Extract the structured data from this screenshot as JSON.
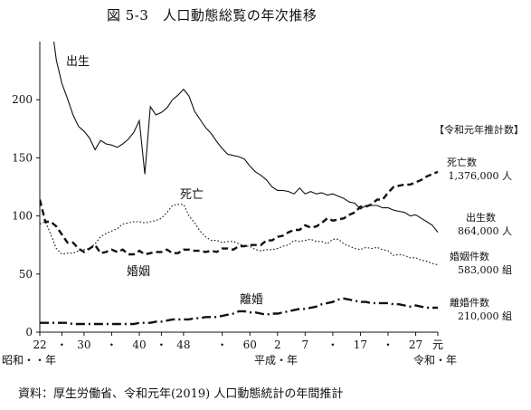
{
  "title": "図 5-3　人口動態総覧の年次推移",
  "source": "資料：厚生労働省、令和元年(2019) 人口動態統計の年間推計",
  "chart_data": {
    "type": "line",
    "ylim": [
      0,
      250
    ],
    "xlim": [
      1947,
      2019
    ],
    "y_ticks": [
      0,
      50,
      100,
      150,
      200
    ],
    "x_ticks": [
      {
        "x": 1947,
        "label": "22"
      },
      {
        "x": 1951,
        "label": "・"
      },
      {
        "x": 1955,
        "label": "30"
      },
      {
        "x": 1960,
        "label": "・"
      },
      {
        "x": 1965,
        "label": "40"
      },
      {
        "x": 1969,
        "label": "・"
      },
      {
        "x": 1973,
        "label": "48"
      },
      {
        "x": 1980,
        "label": "・"
      },
      {
        "x": 1985,
        "label": "60"
      },
      {
        "x": 1990,
        "label": "2"
      },
      {
        "x": 1995,
        "label": "7"
      },
      {
        "x": 2000,
        "label": "・"
      },
      {
        "x": 2005,
        "label": "17"
      },
      {
        "x": 2010,
        "label": "・"
      },
      {
        "x": 2015,
        "label": "27"
      },
      {
        "x": 2019,
        "label": "元"
      }
    ],
    "era_labels": [
      "昭和・・年",
      "平成・年",
      "令和・年"
    ],
    "legend_header": "【令和元年推計数】",
    "series": [
      {
        "name": "出生",
        "end_label": [
          "出生数",
          "864,000 人"
        ],
        "color": "#111111",
        "dash": "",
        "x": [
          1947,
          1948,
          1949,
          1950,
          1951,
          1952,
          1953,
          1954,
          1955,
          1956,
          1957,
          1958,
          1959,
          1960,
          1961,
          1962,
          1963,
          1964,
          1965,
          1966,
          1967,
          1968,
          1969,
          1970,
          1971,
          1972,
          1973,
          1974,
          1975,
          1976,
          1977,
          1978,
          1979,
          1980,
          1981,
          1982,
          1983,
          1984,
          1985,
          1986,
          1987,
          1988,
          1989,
          1990,
          1991,
          1992,
          1993,
          1994,
          1995,
          1996,
          1997,
          1998,
          1999,
          2000,
          2001,
          2002,
          2003,
          2004,
          2005,
          2006,
          2007,
          2008,
          2009,
          2010,
          2011,
          2012,
          2013,
          2014,
          2015,
          2016,
          2017,
          2018,
          2019
        ],
        "values": [
          268,
          268,
          270,
          234,
          214,
          201,
          187,
          177,
          173,
          167,
          157,
          165,
          162,
          161,
          159,
          162,
          166,
          172,
          182,
          136,
          194,
          187,
          189,
          193,
          200,
          204,
          209,
          203,
          190,
          183,
          176,
          171,
          164,
          158,
          153,
          152,
          151,
          149,
          143,
          138,
          135,
          131,
          125,
          122,
          122,
          121,
          119,
          124,
          119,
          121,
          119,
          120,
          118,
          119,
          117,
          115,
          112,
          111,
          106,
          109,
          109,
          109,
          107,
          107,
          105,
          104,
          103,
          100,
          101,
          98,
          95,
          92,
          86
        ]
      },
      {
        "name": "死亡",
        "end_label": [
          "死亡数",
          "1,376,000 人"
        ],
        "color": "#111111",
        "dash": "7,4",
        "x": [
          1947,
          1948,
          1949,
          1950,
          1951,
          1952,
          1953,
          1954,
          1955,
          1956,
          1957,
          1958,
          1959,
          1960,
          1961,
          1962,
          1963,
          1964,
          1965,
          1966,
          1967,
          1968,
          1969,
          1970,
          1971,
          1972,
          1973,
          1974,
          1975,
          1976,
          1977,
          1978,
          1979,
          1980,
          1981,
          1982,
          1983,
          1984,
          1985,
          1986,
          1987,
          1988,
          1989,
          1990,
          1991,
          1992,
          1993,
          1994,
          1995,
          1996,
          1997,
          1998,
          1999,
          2000,
          2001,
          2002,
          2003,
          2004,
          2005,
          2006,
          2007,
          2008,
          2009,
          2010,
          2011,
          2012,
          2013,
          2014,
          2015,
          2016,
          2017,
          2018,
          2019
        ],
        "values": [
          114,
          95,
          95,
          91,
          84,
          77,
          77,
          72,
          69,
          72,
          75,
          68,
          69,
          71,
          69,
          71,
          67,
          67,
          70,
          67,
          68,
          69,
          69,
          71,
          68,
          68,
          71,
          71,
          70,
          70,
          69,
          70,
          69,
          72,
          72,
          71,
          74,
          74,
          75,
          75,
          75,
          79,
          79,
          82,
          83,
          86,
          88,
          88,
          92,
          90,
          91,
          94,
          98,
          96,
          97,
          98,
          101,
          103,
          108,
          108,
          110,
          114,
          114,
          120,
          125,
          126,
          127,
          127,
          129,
          131,
          134,
          136,
          138
        ]
      },
      {
        "name": "婚姻",
        "end_label": [
          "婚姻件数",
          "583,000 組"
        ],
        "color": "#111111",
        "dash": "1.6,2.2",
        "x": [
          1947,
          1948,
          1949,
          1950,
          1951,
          1952,
          1953,
          1954,
          1955,
          1956,
          1957,
          1958,
          1959,
          1960,
          1961,
          1962,
          1963,
          1964,
          1965,
          1966,
          1967,
          1968,
          1969,
          1970,
          1971,
          1972,
          1973,
          1974,
          1975,
          1976,
          1977,
          1978,
          1979,
          1980,
          1981,
          1982,
          1983,
          1984,
          1985,
          1986,
          1987,
          1988,
          1989,
          1990,
          1991,
          1992,
          1993,
          1994,
          1995,
          1996,
          1997,
          1998,
          1999,
          2000,
          2001,
          2002,
          2003,
          2004,
          2005,
          2006,
          2007,
          2008,
          2009,
          2010,
          2011,
          2012,
          2013,
          2014,
          2015,
          2016,
          2017,
          2018,
          2019
        ],
        "values": [
          93,
          95,
          84,
          72,
          67,
          68,
          68,
          70,
          71,
          72,
          76,
          82,
          85,
          87,
          89,
          93,
          94,
          95,
          95,
          94,
          95,
          96,
          98,
          103,
          109,
          110,
          110,
          100,
          94,
          87,
          82,
          79,
          79,
          77,
          78,
          78,
          76,
          74,
          74,
          71,
          70,
          71,
          71,
          72,
          74,
          75,
          79,
          78,
          79,
          80,
          78,
          78,
          76,
          80,
          80,
          76,
          74,
          72,
          71,
          73,
          72,
          73,
          71,
          70,
          66,
          67,
          66,
          64,
          64,
          62,
          61,
          59,
          58
        ]
      },
      {
        "name": "離婚",
        "end_label": [
          "離婚件数",
          "210,000 組"
        ],
        "color": "#111111",
        "dash": "10,4,2,4",
        "x": [
          1947,
          1948,
          1949,
          1950,
          1951,
          1952,
          1953,
          1954,
          1955,
          1956,
          1957,
          1958,
          1959,
          1960,
          1961,
          1962,
          1963,
          1964,
          1965,
          1966,
          1967,
          1968,
          1969,
          1970,
          1971,
          1972,
          1973,
          1974,
          1975,
          1976,
          1977,
          1978,
          1979,
          1980,
          1981,
          1982,
          1983,
          1984,
          1985,
          1986,
          1987,
          1988,
          1989,
          1990,
          1991,
          1992,
          1993,
          1994,
          1995,
          1996,
          1997,
          1998,
          1999,
          2000,
          2001,
          2002,
          2003,
          2004,
          2005,
          2006,
          2007,
          2008,
          2009,
          2010,
          2011,
          2012,
          2013,
          2014,
          2015,
          2016,
          2017,
          2018,
          2019
        ],
        "values": [
          8,
          8,
          8,
          8,
          8,
          8,
          7,
          7,
          7,
          7,
          7,
          7,
          7,
          7,
          7,
          7,
          7,
          7,
          8,
          8,
          8,
          9,
          9,
          10,
          11,
          11,
          11,
          11,
          12,
          12,
          13,
          13,
          13,
          14,
          15,
          16,
          18,
          18,
          17,
          17,
          16,
          15,
          16,
          16,
          17,
          18,
          19,
          20,
          20,
          21,
          22,
          24,
          25,
          26,
          28,
          29,
          28,
          27,
          26,
          26,
          25,
          25,
          25,
          25,
          24,
          24,
          23,
          22,
          23,
          22,
          21,
          21,
          21
        ]
      }
    ]
  }
}
